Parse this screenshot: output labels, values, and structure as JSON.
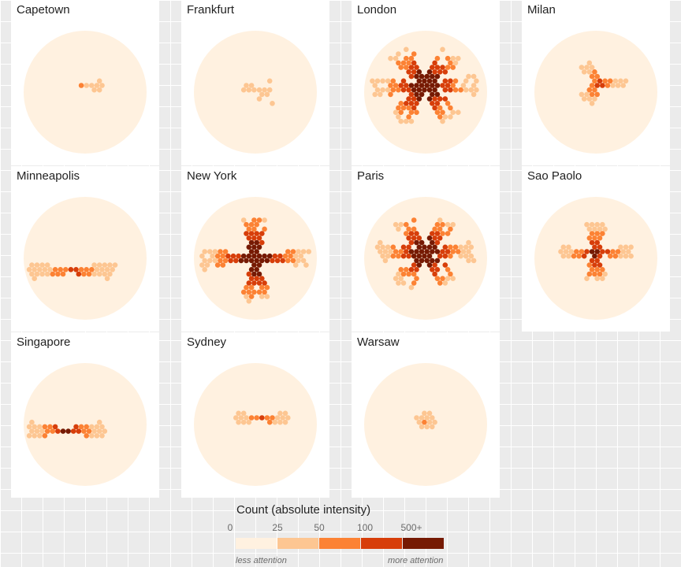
{
  "chart_data": {
    "type": "heatmap",
    "legend": {
      "title": "Count (absolute intensity)",
      "ticks": [
        "0",
        "25",
        "50",
        "100",
        "500+"
      ],
      "colors": [
        "#fff1e0",
        "#fdc692",
        "#fc8234",
        "#d73e0a",
        "#761a03"
      ],
      "low_label": "less attention",
      "high_label": "more attention"
    },
    "panels": [
      {
        "city": "Capetown",
        "intensity": 1,
        "spread": 0.35,
        "arms": 1
      },
      {
        "city": "Frankfurt",
        "intensity": 0,
        "spread": 0.3,
        "arms": 0
      },
      {
        "city": "London",
        "intensity": 4,
        "spread": 0.85,
        "arms": 6
      },
      {
        "city": "Milan",
        "intensity": 2,
        "spread": 0.45,
        "arms": 3
      },
      {
        "city": "Minneapolis",
        "intensity": 2,
        "spread": 0.7,
        "arms": 2
      },
      {
        "city": "New York",
        "intensity": 4,
        "spread": 0.9,
        "arms": 4
      },
      {
        "city": "Paris",
        "intensity": 4,
        "spread": 0.8,
        "arms": 6
      },
      {
        "city": "Sao Paolo",
        "intensity": 3,
        "spread": 0.6,
        "arms": 4
      },
      {
        "city": "Singapore",
        "intensity": 3,
        "spread": 0.6,
        "arms": 2
      },
      {
        "city": "Sydney",
        "intensity": 2,
        "spread": 0.4,
        "arms": 2
      },
      {
        "city": "Warsaw",
        "intensity": 1,
        "spread": 0.15,
        "arms": 0
      }
    ]
  }
}
